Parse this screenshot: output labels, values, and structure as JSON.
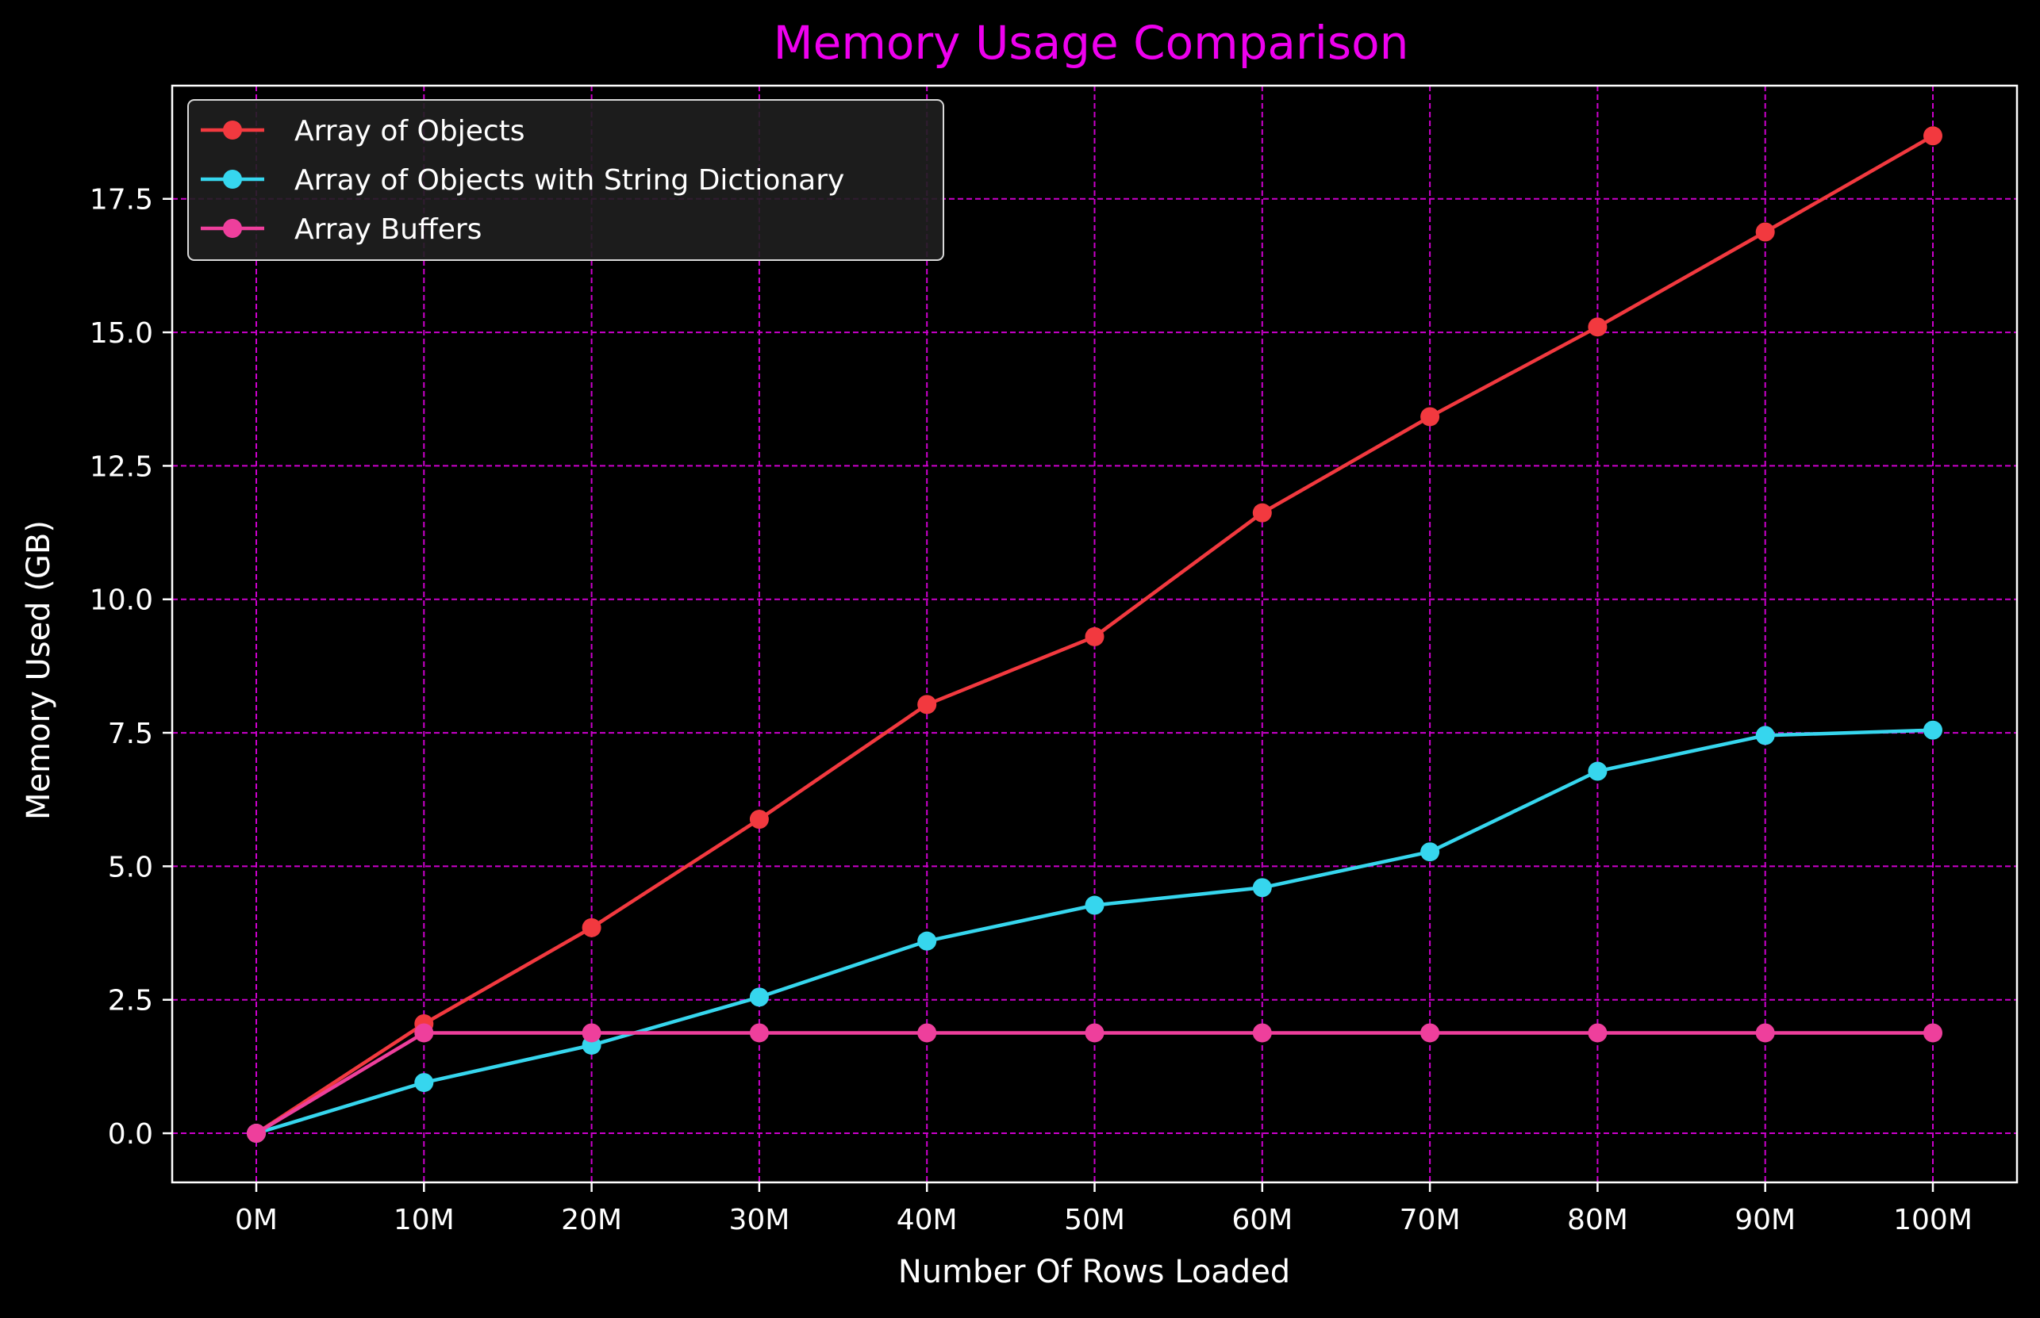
{
  "chart_data": {
    "type": "line",
    "title": "Memory Usage Comparison",
    "xlabel": "Number Of Rows Loaded",
    "ylabel": "Memory Used (GB)",
    "categories": [
      "0M",
      "10M",
      "20M",
      "30M",
      "40M",
      "50M",
      "60M",
      "70M",
      "80M",
      "90M",
      "100M"
    ],
    "yticks": [
      "0.0",
      "2.5",
      "5.0",
      "7.5",
      "10.0",
      "12.5",
      "15.0",
      "17.5"
    ],
    "ylim": [
      -0.92,
      19.62
    ],
    "grid": true,
    "legend_position": "upper-left",
    "colors": {
      "background": "#000000",
      "title": "#ee00ee",
      "grid": "#cc00cc",
      "axes": "#ffffff",
      "text": "#ffffff",
      "legend_bg": "#1f1f1f"
    },
    "series": [
      {
        "name": "Array of Objects",
        "color": "#f2393f",
        "values": [
          0,
          2.05,
          3.85,
          5.88,
          8.03,
          9.3,
          11.62,
          13.42,
          15.1,
          16.88,
          18.68
        ]
      },
      {
        "name": "Array of Objects with String Dictionary",
        "color": "#36d6ee",
        "values": [
          0,
          0.95,
          1.65,
          2.55,
          3.6,
          4.27,
          4.6,
          5.27,
          6.78,
          7.45,
          7.55
        ]
      },
      {
        "name": "Array Buffers",
        "color": "#ee3f9c",
        "values": [
          0,
          1.88,
          1.88,
          1.88,
          1.88,
          1.88,
          1.88,
          1.88,
          1.88,
          1.88,
          1.88
        ]
      }
    ]
  }
}
